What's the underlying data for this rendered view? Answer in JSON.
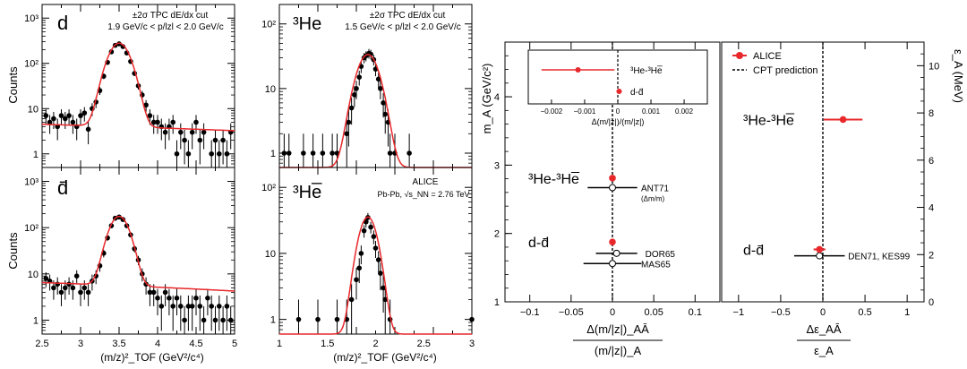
{
  "chart_data": [
    {
      "id": "d",
      "type": "scatter",
      "panel_label": "d",
      "cut_line1": "±2σ TPC dE/dx cut",
      "cut_line2": "1.9 GeV/c < p/lzl < 2.0 GeV/c",
      "ylabel": "Counts",
      "xlim": [
        2.5,
        5.0
      ],
      "ylim": [
        0.5,
        2000
      ],
      "yscale": "log",
      "yticks": [
        {
          "v": 1,
          "label": "1"
        },
        {
          "v": 10,
          "label": "10"
        },
        {
          "v": 100,
          "label": "10²"
        },
        {
          "v": 1000,
          "label": "10³"
        }
      ],
      "fit": {
        "A": 275,
        "mu": 3.5,
        "sigma": 0.12,
        "b0": 4.5,
        "b1": -0.5,
        "color": "#e8282b"
      },
      "points": [
        [
          2.55,
          7
        ],
        [
          2.6,
          5
        ],
        [
          2.65,
          6
        ],
        [
          2.7,
          4
        ],
        [
          2.75,
          7
        ],
        [
          2.8,
          6
        ],
        [
          2.85,
          7
        ],
        [
          2.9,
          5
        ],
        [
          2.95,
          4
        ],
        [
          3.0,
          7
        ],
        [
          3.05,
          8
        ],
        [
          3.1,
          3.5
        ],
        [
          3.15,
          10
        ],
        [
          3.2,
          14
        ],
        [
          3.25,
          25
        ],
        [
          3.3,
          52
        ],
        [
          3.35,
          105
        ],
        [
          3.4,
          180
        ],
        [
          3.45,
          250
        ],
        [
          3.5,
          270
        ],
        [
          3.55,
          235
        ],
        [
          3.6,
          170
        ],
        [
          3.65,
          110
        ],
        [
          3.7,
          60
        ],
        [
          3.75,
          32
        ],
        [
          3.8,
          20
        ],
        [
          3.85,
          12
        ],
        [
          3.9,
          7
        ],
        [
          3.95,
          5
        ],
        [
          4.0,
          5
        ],
        [
          4.05,
          4
        ],
        [
          4.1,
          3
        ],
        [
          4.15,
          4
        ],
        [
          4.2,
          5
        ],
        [
          4.25,
          1
        ],
        [
          4.3,
          3
        ],
        [
          4.35,
          2
        ],
        [
          4.4,
          1
        ],
        [
          4.45,
          3
        ],
        [
          4.5,
          5
        ],
        [
          4.55,
          2
        ],
        [
          4.6,
          3
        ],
        [
          4.7,
          1
        ],
        [
          4.75,
          2
        ],
        [
          4.8,
          1
        ],
        [
          4.85,
          2
        ],
        [
          4.9,
          1
        ],
        [
          4.95,
          3
        ]
      ]
    },
    {
      "id": "he3",
      "type": "scatter",
      "panel_label": "³He",
      "cut_line1": "±2σ TPC dE/dx cut",
      "cut_line2": "1.5 GeV/c < p/lzl < 2.0 GeV/c",
      "xlim": [
        1.0,
        3.0
      ],
      "ylim": [
        0.6,
        200
      ],
      "yscale": "log",
      "yticks": [
        {
          "v": 1,
          "label": "1"
        },
        {
          "v": 10,
          "label": "10"
        },
        {
          "v": 100,
          "label": "10²"
        }
      ],
      "fit": {
        "A": 33,
        "mu": 1.92,
        "sigma": 0.1,
        "b0": 0.6,
        "b1": 0,
        "color": "#e8282b"
      },
      "points": [
        [
          1.05,
          1
        ],
        [
          1.1,
          1
        ],
        [
          1.25,
          1
        ],
        [
          1.35,
          1
        ],
        [
          1.45,
          1
        ],
        [
          1.55,
          1
        ],
        [
          1.6,
          1
        ],
        [
          1.7,
          2
        ],
        [
          1.72,
          3
        ],
        [
          1.75,
          5
        ],
        [
          1.78,
          8
        ],
        [
          1.8,
          10
        ],
        [
          1.83,
          15
        ],
        [
          1.85,
          22
        ],
        [
          1.88,
          30
        ],
        [
          1.9,
          32
        ],
        [
          1.93,
          35
        ],
        [
          1.95,
          34
        ],
        [
          1.98,
          28
        ],
        [
          2.0,
          20
        ],
        [
          2.03,
          14
        ],
        [
          2.05,
          10
        ],
        [
          2.08,
          6
        ],
        [
          2.1,
          4
        ],
        [
          2.13,
          3
        ],
        [
          2.15,
          1
        ],
        [
          2.2,
          1
        ],
        [
          2.35,
          1
        ]
      ]
    },
    {
      "id": "dbar",
      "type": "scatter",
      "panel_label": "d̄",
      "ylabel": "Counts",
      "xlabel": "(m/z)²_TOF (GeV²/c⁴)",
      "xlim": [
        2.5,
        5.0
      ],
      "ylim": [
        0.5,
        2000
      ],
      "yscale": "log",
      "yticks": [
        {
          "v": 1,
          "label": "1"
        },
        {
          "v": 10,
          "label": "10"
        },
        {
          "v": 100,
          "label": "10²"
        },
        {
          "v": 1000,
          "label": "10³"
        }
      ],
      "xticks": [
        {
          "v": 2.5,
          "label": "2.5"
        },
        {
          "v": 3,
          "label": "3"
        },
        {
          "v": 3.5,
          "label": "3.5"
        },
        {
          "v": 4,
          "label": "4"
        },
        {
          "v": 4.5,
          "label": "4.5"
        },
        {
          "v": 5,
          "label": "5"
        }
      ],
      "fit": {
        "A": 170,
        "mu": 3.5,
        "sigma": 0.11,
        "b0": 6.5,
        "b1": -0.9,
        "color": "#e8282b"
      },
      "points": [
        [
          2.55,
          8
        ],
        [
          2.6,
          7
        ],
        [
          2.65,
          5
        ],
        [
          2.7,
          6
        ],
        [
          2.75,
          4
        ],
        [
          2.8,
          5
        ],
        [
          2.85,
          6
        ],
        [
          2.9,
          5
        ],
        [
          2.95,
          9
        ],
        [
          3.0,
          4
        ],
        [
          3.05,
          5
        ],
        [
          3.1,
          4
        ],
        [
          3.15,
          7
        ],
        [
          3.2,
          9
        ],
        [
          3.25,
          15
        ],
        [
          3.3,
          28
        ],
        [
          3.35,
          60
        ],
        [
          3.4,
          110
        ],
        [
          3.45,
          160
        ],
        [
          3.5,
          170
        ],
        [
          3.55,
          150
        ],
        [
          3.6,
          110
        ],
        [
          3.65,
          70
        ],
        [
          3.7,
          35
        ],
        [
          3.75,
          20
        ],
        [
          3.8,
          10
        ],
        [
          3.85,
          6
        ],
        [
          3.9,
          4
        ],
        [
          3.95,
          4
        ],
        [
          4.0,
          3
        ],
        [
          4.05,
          2
        ],
        [
          4.1,
          4
        ],
        [
          4.15,
          3
        ],
        [
          4.2,
          2
        ],
        [
          4.25,
          3
        ],
        [
          4.3,
          2
        ],
        [
          4.35,
          1
        ],
        [
          4.4,
          2
        ],
        [
          4.45,
          2
        ],
        [
          4.5,
          3
        ],
        [
          4.55,
          2
        ],
        [
          4.6,
          1
        ],
        [
          4.65,
          3
        ],
        [
          4.7,
          2
        ],
        [
          4.75,
          1
        ],
        [
          4.8,
          2
        ],
        [
          4.85,
          1
        ],
        [
          4.9,
          2
        ],
        [
          4.95,
          1
        ]
      ]
    },
    {
      "id": "he3bar",
      "type": "scatter",
      "panel_label": "³He̅",
      "experiment": "ALICE",
      "system_prefix": "Pb-Pb,",
      "system_energy": "= 2.76 TeV",
      "xlabel": "(m/z)²_TOF (GeV²/c⁴)",
      "xlim": [
        1.0,
        3.0
      ],
      "ylim": [
        0.6,
        200
      ],
      "yscale": "log",
      "yticks": [
        {
          "v": 1,
          "label": "1"
        },
        {
          "v": 10,
          "label": "10"
        },
        {
          "v": 100,
          "label": "10²"
        }
      ],
      "xticks": [
        {
          "v": 1,
          "label": "1"
        },
        {
          "v": 1.5,
          "label": "1.5"
        },
        {
          "v": 2,
          "label": "2"
        },
        {
          "v": 2.5,
          "label": "2.5"
        },
        {
          "v": 3,
          "label": "3"
        }
      ],
      "fit": {
        "A": 35,
        "mu": 1.92,
        "sigma": 0.08,
        "b0": 0.6,
        "b1": 0,
        "color": "#e8282b"
      },
      "points": [
        [
          1.2,
          1
        ],
        [
          1.4,
          1
        ],
        [
          1.6,
          1
        ],
        [
          1.7,
          1
        ],
        [
          1.75,
          2
        ],
        [
          1.8,
          4
        ],
        [
          1.83,
          6
        ],
        [
          1.85,
          10
        ],
        [
          1.88,
          22
        ],
        [
          1.9,
          30
        ],
        [
          1.92,
          35
        ],
        [
          1.95,
          25
        ],
        [
          1.98,
          18
        ],
        [
          2.0,
          12
        ],
        [
          2.03,
          8
        ],
        [
          2.05,
          5
        ],
        [
          2.08,
          3
        ],
        [
          2.1,
          2
        ],
        [
          2.15,
          1
        ],
        [
          3.0,
          1
        ]
      ]
    },
    {
      "id": "mass_ratio",
      "type": "scatter",
      "ylabel": "m_A (GeV/c²)",
      "xlabel_num": "Δ(m/|z|)_AĀ",
      "xlabel_den": "(m/|z|)_A",
      "xlim": [
        -0.13,
        0.13
      ],
      "ylim": [
        1.0,
        4.8
      ],
      "xticks": [
        {
          "v": -0.1,
          "label": "−0.1"
        },
        {
          "v": -0.05,
          "label": "−0.05"
        },
        {
          "v": 0,
          "label": "0"
        },
        {
          "v": 0.05,
          "label": "0.05"
        },
        {
          "v": 0.1,
          "label": "0.1"
        }
      ],
      "yticks": [
        {
          "v": 1,
          "label": "1"
        },
        {
          "v": 2,
          "label": "2"
        },
        {
          "v": 3,
          "label": "3"
        },
        {
          "v": 4,
          "label": "4"
        }
      ],
      "series": [
        {
          "name": "ALICE",
          "points": [
            {
              "x": 0.0,
              "y": 2.81,
              "xerr": 0.0
            },
            {
              "x": 0.0,
              "y": 1.876,
              "xerr": 0.0
            }
          ],
          "color": "#e8282b"
        }
      ],
      "references": [
        {
          "label": "ANT71",
          "sublabel": "(Δm/m)",
          "x": 0.0,
          "y": 2.67,
          "xerr": 0.03
        },
        {
          "label": "DOR65",
          "x": 0.005,
          "y": 1.71,
          "xerr": 0.025
        },
        {
          "label": "MAS65",
          "x": 0.0,
          "y": 1.56,
          "xerr": 0.035
        }
      ],
      "annotations": [
        {
          "text": "³He-³He̅",
          "y": 2.81
        },
        {
          "text": "d-d̄",
          "y": 1.876
        }
      ],
      "inset": {
        "xlabel": "Δ(m/|z|)/(m/|z|)",
        "xlim": [
          -0.0027,
          0.0027
        ],
        "xticks": [
          {
            "v": -0.002,
            "label": "−0.002"
          },
          {
            "v": -0.001,
            "label": "−0.001"
          },
          {
            "v": 0,
            "label": "0"
          },
          {
            "v": 0.001,
            "label": "0.001"
          },
          {
            "v": 0.002,
            "label": "0.002"
          }
        ],
        "points": [
          {
            "label": "³He-³He̅",
            "x": -0.0012,
            "xerr": 0.0011
          },
          {
            "label": "d-d̄",
            "x": 4e-05,
            "xerr": 8e-05
          }
        ]
      }
    },
    {
      "id": "binding",
      "type": "scatter",
      "ylabel": "ε_A (MeV)",
      "xlabel_num": "Δε_AĀ",
      "xlabel_den": "ε_A",
      "xlim": [
        -1.2,
        1.2
      ],
      "ylim": [
        0,
        11
      ],
      "xticks": [
        {
          "v": -1,
          "label": "−1"
        },
        {
          "v": -0.5,
          "label": "−0.5"
        },
        {
          "v": 0,
          "label": "0"
        },
        {
          "v": 0.5,
          "label": "0.5"
        },
        {
          "v": 1,
          "label": "1"
        }
      ],
      "yticks": [
        {
          "v": 0,
          "label": "0"
        },
        {
          "v": 2,
          "label": "2"
        },
        {
          "v": 4,
          "label": "4"
        },
        {
          "v": 6,
          "label": "6"
        },
        {
          "v": 8,
          "label": "8"
        },
        {
          "v": 10,
          "label": "10"
        }
      ],
      "series": [
        {
          "name": "ALICE",
          "points": [
            {
              "x": 0.24,
              "y": 7.72,
              "xerr": 0.23
            },
            {
              "x": -0.04,
              "y": 2.22,
              "xerr": 0.07
            }
          ],
          "color": "#e8282b"
        }
      ],
      "references": [
        {
          "label": "DEN71, KES99",
          "x": -0.04,
          "y": 1.95,
          "xerr": 0.3
        }
      ],
      "legend": [
        {
          "label": "ALICE",
          "style": "marker"
        },
        {
          "label": "CPT prediction",
          "style": "dashed"
        }
      ],
      "annotations": [
        {
          "text": "³He-³He̅",
          "y": 7.72
        },
        {
          "text": "d-d̄",
          "y": 2.22
        }
      ]
    }
  ]
}
